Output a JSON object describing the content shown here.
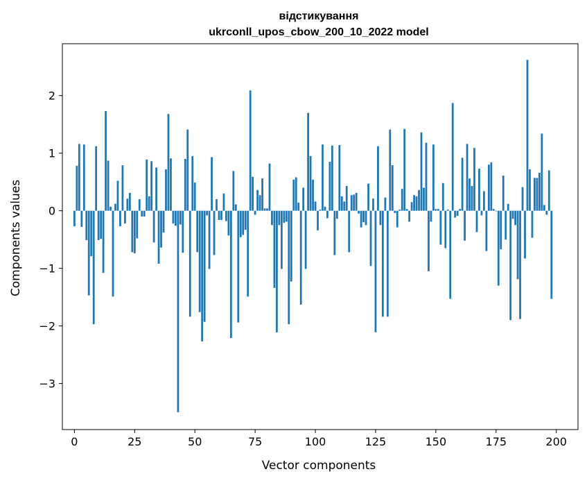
{
  "chart_data": {
    "type": "bar",
    "title_line1": "відстикування",
    "title_line2": "ukrconll_upos_cbow_200_10_2022 model",
    "xlabel": "Vector components",
    "ylabel": "Components values",
    "xlim": [
      -5,
      209
    ],
    "ylim": [
      -3.8,
      2.9
    ],
    "xticks": [
      0,
      25,
      50,
      75,
      100,
      125,
      150,
      175,
      200
    ],
    "yticks": [
      -3,
      -2,
      -1,
      0,
      1,
      2
    ],
    "ytick_labels": [
      "−3",
      "−2",
      "−1",
      "0",
      "1",
      "2"
    ],
    "values": [
      -0.27,
      0.78,
      1.16,
      -0.28,
      1.15,
      -0.51,
      -1.47,
      -0.79,
      -1.97,
      1.12,
      -0.51,
      -0.49,
      -1.08,
      1.73,
      0.87,
      0.07,
      -1.49,
      0.12,
      0.52,
      -0.27,
      0.79,
      -0.22,
      0.21,
      0.31,
      -0.72,
      -0.74,
      -0.48,
      0.2,
      -0.1,
      -0.1,
      0.89,
      0.25,
      0.86,
      -0.55,
      0.75,
      -0.92,
      -0.64,
      -0.38,
      0.72,
      1.68,
      0.91,
      -0.22,
      -0.26,
      -3.5,
      -0.24,
      -0.73,
      0.9,
      1.41,
      -1.84,
      0.95,
      0.49,
      -0.72,
      -1.76,
      -2.27,
      -1.93,
      -0.08,
      -1.01,
      0.93,
      -0.77,
      0.2,
      -0.16,
      -0.16,
      0.3,
      -0.18,
      -0.43,
      -2.21,
      0.69,
      0.11,
      -1.94,
      -0.46,
      -0.42,
      -0.33,
      -1.49,
      2.09,
      0.59,
      -0.07,
      0.36,
      0.27,
      0.56,
      0.04,
      0.04,
      0.82,
      -0.25,
      -1.34,
      -2.11,
      -0.25,
      -1.01,
      -0.21,
      -0.19,
      -1.97,
      -1.23,
      0.54,
      0.58,
      0.14,
      -1.63,
      0.4,
      -1.01,
      1.7,
      0.95,
      0.54,
      0.16,
      -0.34,
      0.02,
      1.15,
      0.07,
      -0.13,
      0.85,
      1.13,
      -0.77,
      -0.14,
      1.14,
      0.25,
      0.16,
      0.43,
      -0.72,
      0.27,
      0.28,
      0.31,
      -0.05,
      -0.29,
      -0.2,
      -0.25,
      0.47,
      -0.96,
      0.21,
      -2.11,
      1.12,
      -0.25,
      -1.84,
      0.23,
      -1.84,
      1.41,
      0.79,
      -0.04,
      -0.29,
      0.02,
      0.38,
      1.42,
      0.03,
      -0.19,
      0.15,
      0.27,
      0.25,
      0.36,
      1.36,
      0.4,
      1.18,
      -1.05,
      -0.19,
      1.15,
      0.03,
      0.03,
      -0.59,
      0.48,
      -0.65,
      0.02,
      -1.53,
      1.87,
      -0.12,
      -0.09,
      0.03,
      0.92,
      -0.52,
      1.16,
      0.56,
      0.43,
      1.09,
      -0.37,
      0.73,
      -0.08,
      0.34,
      -0.7,
      0.8,
      0.84,
      0.03,
      -0.01,
      -1.3,
      -0.67,
      0.61,
      -0.5,
      0.12,
      -1.9,
      -0.14,
      -0.25,
      -1.19,
      -1.88,
      0.41,
      -0.83,
      2.62,
      0.72,
      -0.47,
      0.57,
      0.57,
      0.66,
      1.34,
      0.1,
      -0.07,
      0.7,
      -1.53
    ]
  }
}
